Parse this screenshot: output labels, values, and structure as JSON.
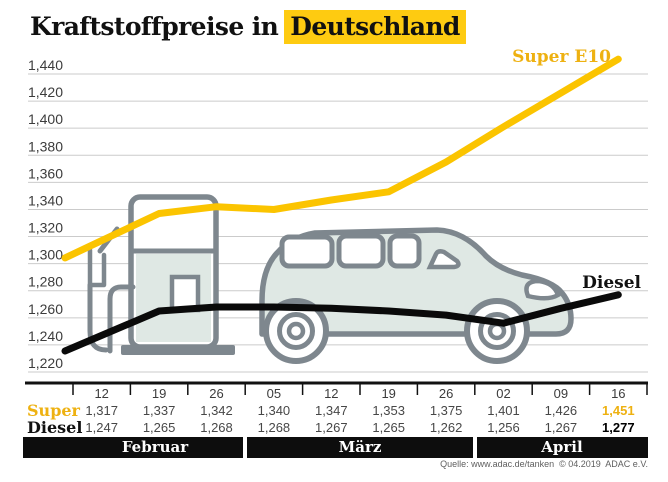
{
  "title": {
    "prefix": "Kraftstoffpreise in",
    "highlight": "Deutschland"
  },
  "series_labels": {
    "super": "Super E10",
    "diesel": "Diesel"
  },
  "table_labels": {
    "super": "Super",
    "diesel": "Diesel"
  },
  "months": [
    "Februar",
    "März",
    "April"
  ],
  "source": "Quelle: www.adac.de/tanken  © 04.2019  ADAC e.V.",
  "colors": {
    "yellow_line": "#FBC400",
    "yellow_text": "#EEB111",
    "title_highlight": "#FECB11",
    "diesel_line": "#0a0a0a",
    "grid": "#CBCBCB",
    "icon_stroke": "#7E878E",
    "icon_fill": "#DFE8E4"
  },
  "chart_data": {
    "type": "line",
    "title": "Kraftstoffpreise in Deutschland",
    "x_tick_labels": [
      "12",
      "19",
      "26",
      "05",
      "12",
      "19",
      "26",
      "02",
      "09",
      "16"
    ],
    "month_groups": [
      {
        "label": "Februar",
        "count": 3
      },
      {
        "label": "März",
        "count": 4
      },
      {
        "label": "April",
        "count": 3
      }
    ],
    "series": [
      {
        "name": "Super E10",
        "values": [
          1.317,
          1.337,
          1.342,
          1.34,
          1.347,
          1.353,
          1.375,
          1.401,
          1.426,
          1.451
        ]
      },
      {
        "name": "Diesel",
        "values": [
          1.247,
          1.265,
          1.268,
          1.268,
          1.267,
          1.265,
          1.262,
          1.256,
          1.267,
          1.277
        ]
      }
    ],
    "ylim": [
      1.22,
      1.44
    ],
    "y_step": 0.02,
    "grid": true,
    "legend_position": "inline-labels"
  }
}
